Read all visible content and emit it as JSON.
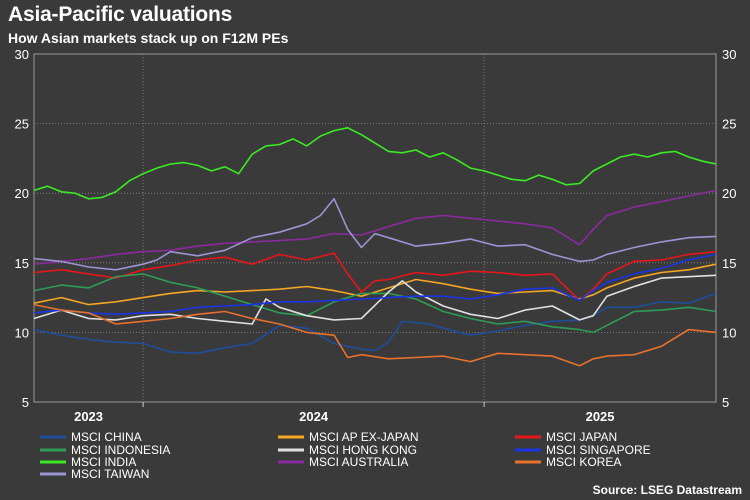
{
  "header": {
    "title": "Asia-Pacific valuations",
    "subtitle": "How Asian markets stack up on F12M PEs"
  },
  "footer": {
    "source": "Source: LSEG Datastream"
  },
  "chart_data": {
    "type": "line",
    "title": "Asia-Pacific valuations",
    "subtitle": "How Asian markets stack up on F12M PEs",
    "ylim": [
      5,
      30
    ],
    "yticks": [
      5,
      10,
      15,
      20,
      25,
      30
    ],
    "xlim": [
      0,
      100
    ],
    "x_labels": [
      {
        "label": "2023",
        "x": 8
      },
      {
        "label": "2024",
        "x": 41
      },
      {
        "label": "2025",
        "x": 83
      }
    ],
    "year_boundaries": [
      16,
      66
    ],
    "grid": true,
    "legend_position": "bottom",
    "series": [
      {
        "name": "MSCI CHINA",
        "color": "#1f4e9a",
        "x": [
          0,
          4,
          8,
          12,
          16,
          20,
          24,
          28,
          32,
          36,
          40,
          44,
          48,
          50,
          52,
          54,
          56,
          58,
          60,
          64,
          68,
          72,
          76,
          80,
          82,
          84,
          88,
          92,
          96,
          100
        ],
        "values": [
          10.2,
          9.8,
          9.5,
          9.3,
          9.2,
          8.6,
          8.5,
          8.9,
          9.2,
          10.5,
          10.3,
          9.2,
          8.8,
          8.7,
          9.3,
          10.8,
          10.7,
          10.6,
          10.3,
          9.8,
          10.1,
          10.5,
          10.8,
          10.9,
          11.2,
          11.8,
          11.8,
          12.2,
          12.1,
          12.8
        ]
      },
      {
        "name": "MSCI AP EX-JAPAN",
        "color": "#f5a623",
        "x": [
          0,
          4,
          8,
          12,
          16,
          20,
          24,
          28,
          32,
          36,
          40,
          44,
          48,
          52,
          56,
          60,
          64,
          68,
          72,
          76,
          80,
          82,
          84,
          88,
          92,
          96,
          100
        ],
        "values": [
          12.1,
          12.5,
          12.0,
          12.2,
          12.5,
          12.8,
          13.0,
          12.9,
          13.0,
          13.1,
          13.3,
          13.0,
          12.6,
          13.2,
          13.8,
          13.5,
          13.1,
          12.8,
          12.9,
          13.0,
          12.4,
          12.7,
          13.2,
          13.9,
          14.3,
          14.5,
          14.9
        ]
      },
      {
        "name": "MSCI JAPAN",
        "color": "#e8151b",
        "x": [
          0,
          4,
          8,
          12,
          16,
          20,
          24,
          28,
          32,
          36,
          40,
          44,
          46,
          48,
          50,
          52,
          56,
          60,
          64,
          68,
          72,
          76,
          80,
          82,
          84,
          88,
          92,
          96,
          100
        ],
        "values": [
          14.3,
          14.5,
          14.2,
          13.9,
          14.5,
          14.8,
          15.2,
          15.4,
          14.9,
          15.6,
          15.2,
          15.7,
          14.2,
          12.9,
          13.7,
          13.8,
          14.3,
          14.1,
          14.4,
          14.3,
          14.1,
          14.2,
          12.3,
          13.1,
          14.2,
          15.1,
          15.2,
          15.6,
          15.8
        ]
      },
      {
        "name": "MSCI INDONESIA",
        "color": "#2e9c57",
        "x": [
          0,
          4,
          8,
          12,
          16,
          20,
          24,
          28,
          32,
          36,
          40,
          44,
          48,
          52,
          56,
          60,
          64,
          68,
          72,
          76,
          80,
          82,
          84,
          88,
          92,
          96,
          100
        ],
        "values": [
          13.0,
          13.4,
          13.2,
          14.0,
          14.2,
          13.6,
          13.2,
          12.6,
          12.0,
          11.4,
          11.2,
          12.2,
          12.8,
          12.8,
          12.4,
          11.5,
          11.0,
          10.6,
          10.8,
          10.4,
          10.2,
          10.0,
          10.5,
          11.5,
          11.6,
          11.8,
          11.5
        ]
      },
      {
        "name": "MSCI HONG KONG",
        "color": "#e0e0e0",
        "x": [
          0,
          4,
          8,
          12,
          16,
          20,
          24,
          28,
          32,
          34,
          36,
          40,
          44,
          48,
          52,
          54,
          56,
          60,
          64,
          68,
          72,
          76,
          80,
          82,
          84,
          88,
          92,
          96,
          100
        ],
        "values": [
          11.0,
          11.6,
          11.0,
          10.9,
          11.2,
          11.3,
          11.0,
          10.8,
          10.6,
          12.4,
          11.8,
          11.2,
          10.9,
          11.0,
          12.9,
          13.7,
          12.9,
          11.9,
          11.3,
          11.0,
          11.6,
          11.9,
          10.9,
          11.2,
          12.6,
          13.3,
          13.9,
          14.0,
          14.1
        ]
      },
      {
        "name": "MSCI SINGAPORE",
        "color": "#1a34e8",
        "x": [
          0,
          4,
          8,
          12,
          16,
          20,
          24,
          28,
          32,
          36,
          40,
          44,
          48,
          52,
          56,
          60,
          64,
          68,
          72,
          76,
          80,
          82,
          84,
          88,
          92,
          96,
          100
        ],
        "values": [
          11.4,
          11.6,
          11.4,
          11.3,
          11.4,
          11.5,
          11.8,
          11.9,
          12.0,
          12.2,
          12.2,
          12.3,
          12.4,
          12.5,
          12.6,
          12.6,
          12.4,
          12.7,
          13.1,
          13.2,
          12.3,
          13.0,
          13.6,
          14.2,
          14.6,
          15.2,
          15.6
        ]
      },
      {
        "name": "MSCI INDIA",
        "color": "#3bea24",
        "x": [
          0,
          2,
          4,
          6,
          8,
          10,
          12,
          14,
          16,
          18,
          20,
          22,
          24,
          26,
          28,
          30,
          32,
          34,
          36,
          38,
          40,
          42,
          44,
          46,
          48,
          50,
          52,
          54,
          56,
          58,
          60,
          62,
          64,
          66,
          68,
          70,
          72,
          74,
          76,
          78,
          80,
          82,
          84,
          86,
          88,
          90,
          92,
          94,
          96,
          98,
          100
        ],
        "values": [
          20.2,
          20.5,
          20.1,
          20.0,
          19.6,
          19.7,
          20.1,
          20.9,
          21.4,
          21.8,
          22.1,
          22.2,
          22.0,
          21.6,
          21.9,
          21.4,
          22.8,
          23.4,
          23.5,
          23.9,
          23.4,
          24.1,
          24.5,
          24.7,
          24.2,
          23.6,
          23.0,
          22.9,
          23.1,
          22.6,
          22.9,
          22.4,
          21.8,
          21.6,
          21.3,
          21.0,
          20.9,
          21.3,
          21.0,
          20.6,
          20.7,
          21.6,
          22.1,
          22.6,
          22.8,
          22.6,
          22.9,
          23.0,
          22.6,
          22.3,
          22.1
        ]
      },
      {
        "name": "MSCI AUSTRALIA",
        "color": "#8b2a9e",
        "x": [
          0,
          4,
          8,
          12,
          16,
          20,
          24,
          28,
          32,
          36,
          40,
          44,
          48,
          52,
          56,
          60,
          64,
          68,
          72,
          76,
          80,
          82,
          84,
          88,
          92,
          96,
          100
        ],
        "values": [
          14.9,
          15.1,
          15.3,
          15.6,
          15.8,
          15.9,
          16.2,
          16.4,
          16.5,
          16.6,
          16.7,
          17.1,
          17.0,
          17.6,
          18.2,
          18.4,
          18.2,
          18.0,
          17.8,
          17.5,
          16.3,
          17.4,
          18.4,
          19.0,
          19.4,
          19.8,
          20.2
        ]
      },
      {
        "name": "MSCI KOREA",
        "color": "#e8722b",
        "x": [
          0,
          4,
          8,
          12,
          16,
          20,
          24,
          28,
          32,
          36,
          40,
          44,
          46,
          48,
          52,
          56,
          60,
          64,
          68,
          72,
          76,
          80,
          82,
          84,
          88,
          92,
          96,
          100
        ],
        "values": [
          12.0,
          11.6,
          11.4,
          10.6,
          10.8,
          11.0,
          11.3,
          11.5,
          11.0,
          10.6,
          10.0,
          9.8,
          8.2,
          8.4,
          8.1,
          8.2,
          8.3,
          7.9,
          8.5,
          8.4,
          8.3,
          7.6,
          8.1,
          8.3,
          8.4,
          9.0,
          10.2,
          10.0
        ]
      },
      {
        "name": "MSCI TAIWAN",
        "color": "#9b95d3",
        "x": [
          0,
          4,
          8,
          12,
          16,
          18,
          20,
          24,
          28,
          32,
          36,
          40,
          42,
          44,
          46,
          48,
          50,
          52,
          56,
          60,
          64,
          68,
          72,
          76,
          80,
          82,
          84,
          88,
          92,
          96,
          100
        ],
        "values": [
          15.3,
          15.1,
          14.7,
          14.5,
          14.9,
          15.2,
          15.8,
          15.5,
          15.9,
          16.8,
          17.2,
          17.8,
          18.4,
          19.6,
          17.4,
          16.1,
          17.1,
          16.8,
          16.2,
          16.4,
          16.7,
          16.2,
          16.3,
          15.6,
          15.1,
          15.2,
          15.6,
          16.1,
          16.5,
          16.8,
          16.9
        ]
      }
    ]
  }
}
